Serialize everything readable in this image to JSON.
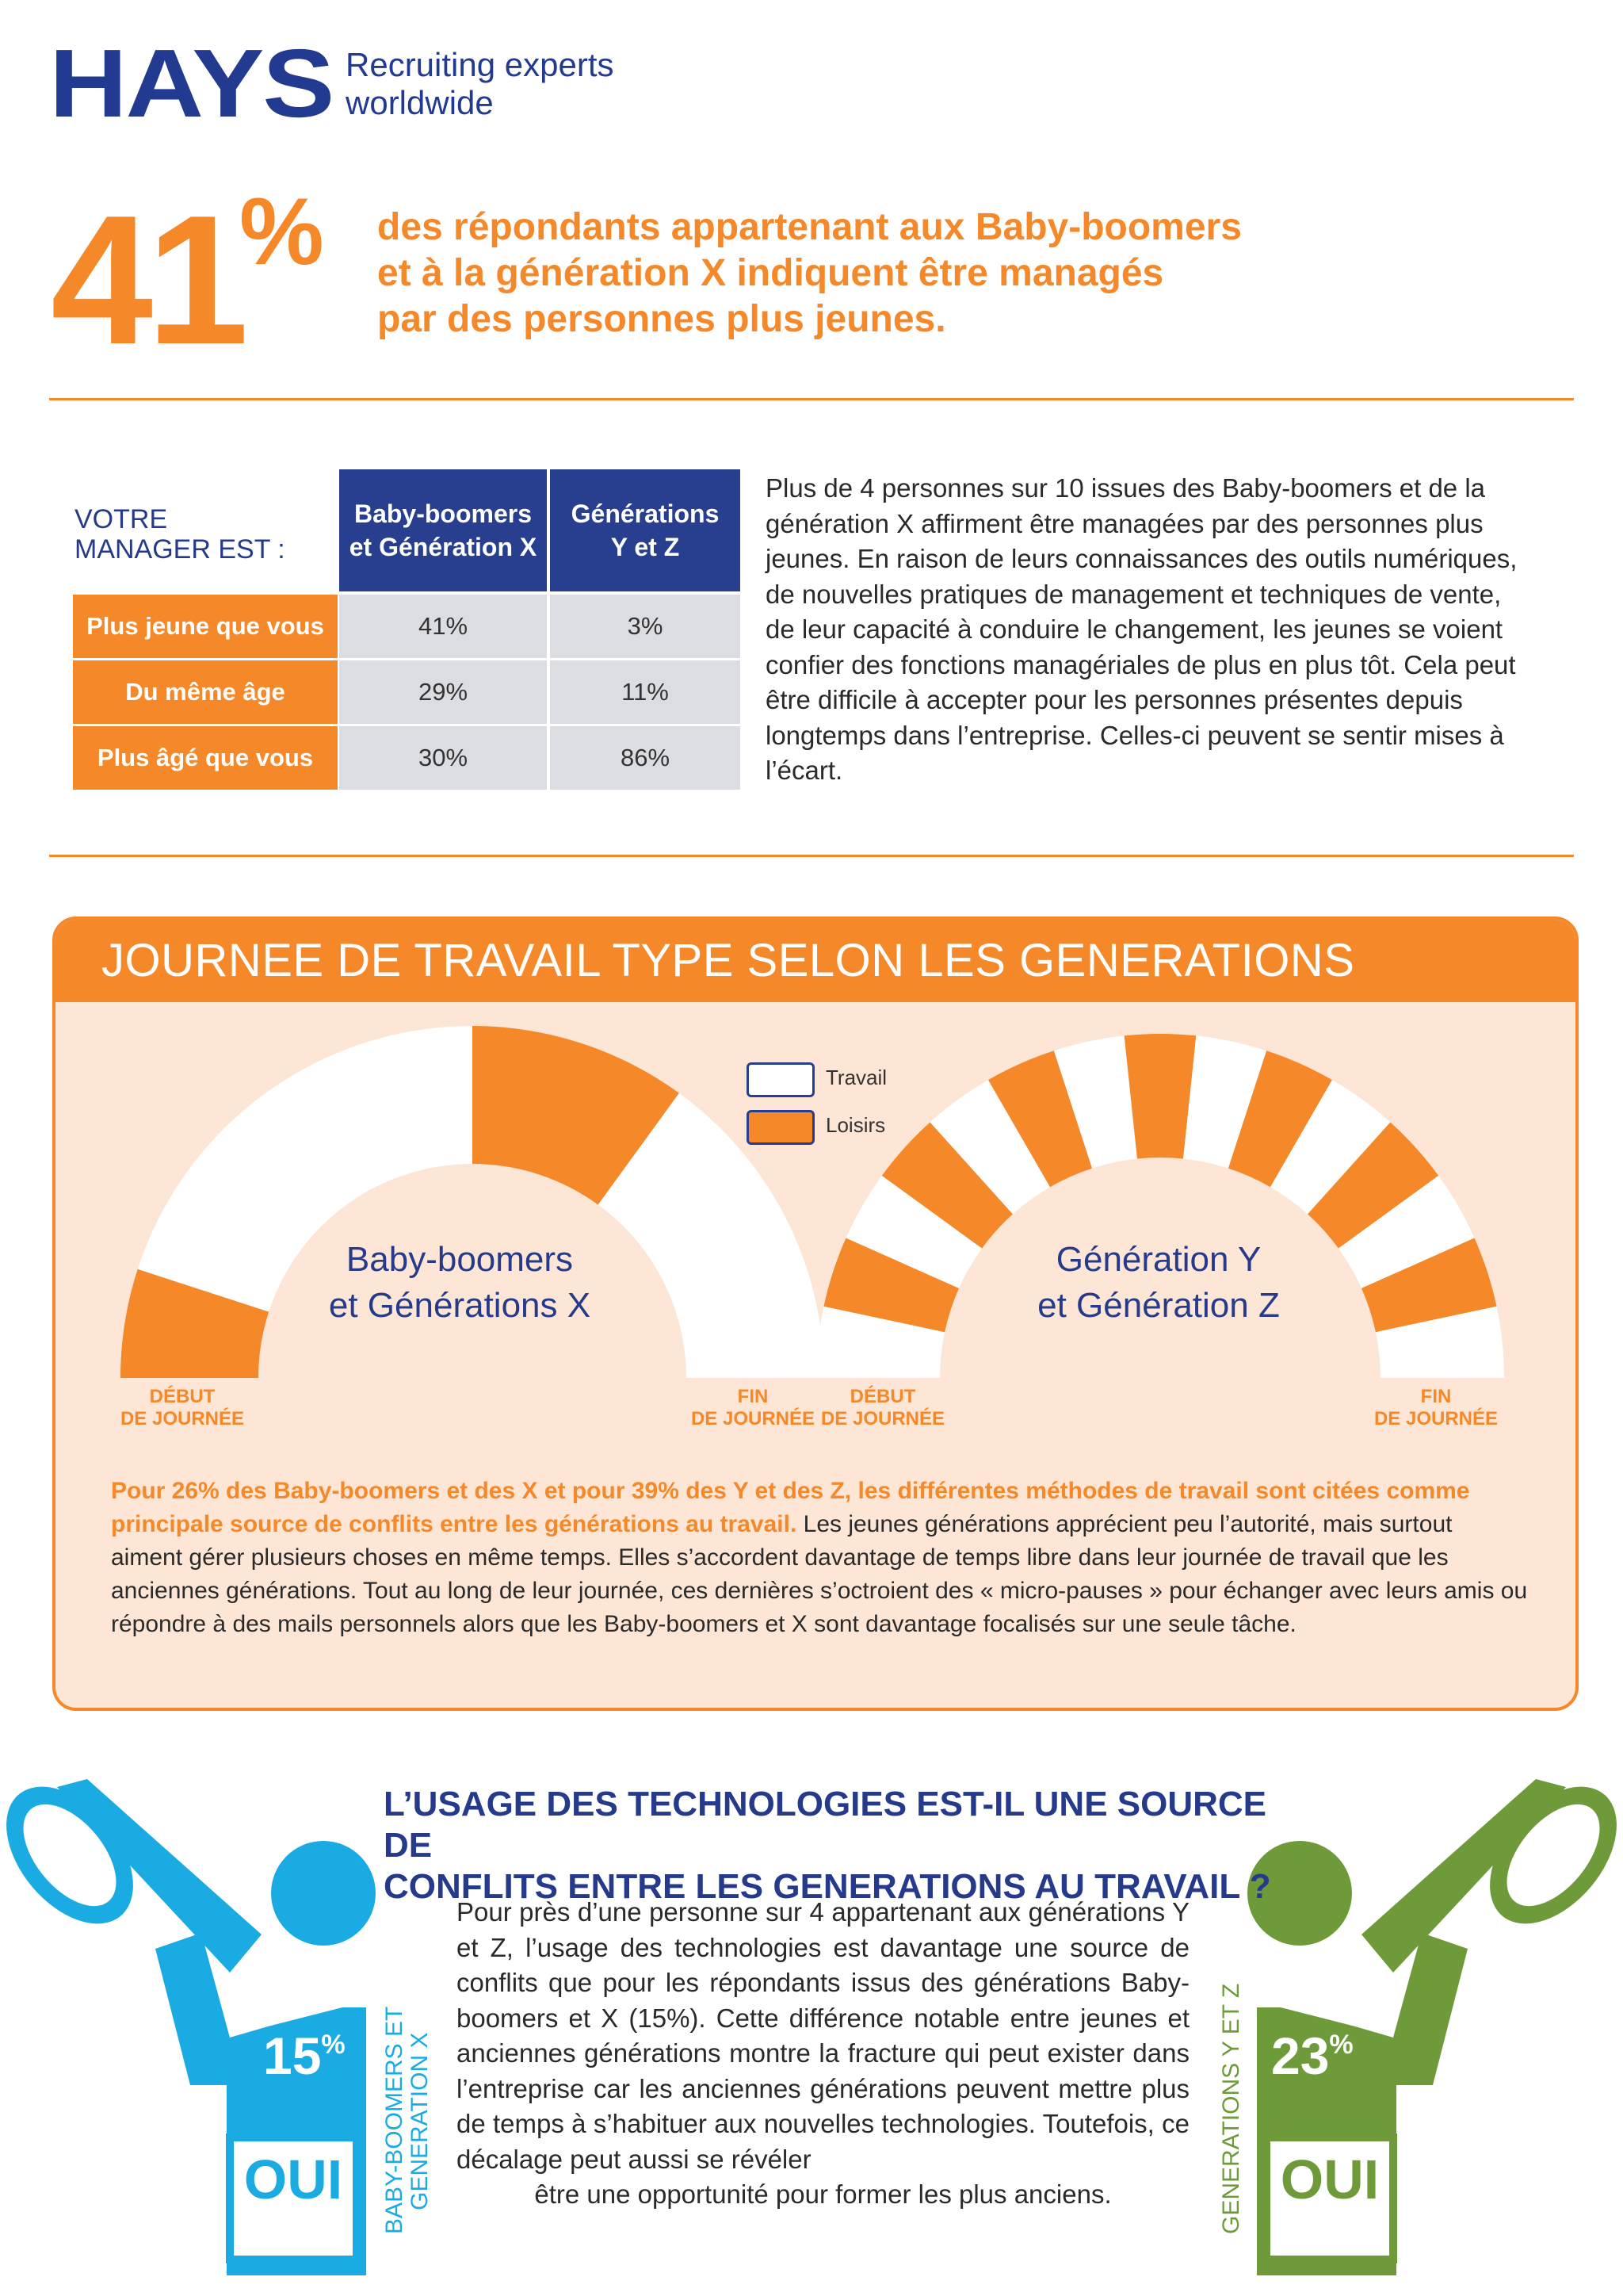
{
  "header": {
    "logo": "HAYS",
    "tagline_line1": "Recruiting experts",
    "tagline_line2": "worldwide"
  },
  "stat": {
    "number": "41",
    "percent": "%",
    "headline": [
      "des répondants appartenant aux Baby-boomers",
      "et à la génération X indiquent être managés",
      "par des personnes plus jeunes."
    ]
  },
  "manager_table": {
    "label_line1": "VOTRE",
    "label_line2": "MANAGER EST :",
    "columns": [
      {
        "line1": "Baby-boomers",
        "line2": "et Génération X"
      },
      {
        "line1": "Générations",
        "line2": "Y et Z"
      }
    ],
    "rows": [
      {
        "label": "Plus jeune que vous",
        "values": [
          "41%",
          "3%"
        ]
      },
      {
        "label": "Du même âge",
        "values": [
          "29%",
          "11%"
        ]
      },
      {
        "label": "Plus âgé que vous",
        "values": [
          "30%",
          "86%"
        ]
      }
    ]
  },
  "intro_text": "Plus de 4 personnes sur 10 issues des Baby-boomers et de la génération X affirment être managées par des personnes plus jeunes. En raison de leurs connaissances des outils numériques, de nouvelles pratiques de management et techniques de vente, de leur capacité à conduire le changement, les jeunes se voient confier des fonctions managériales de plus en plus tôt. Cela peut être difficile à accepter pour les personnes présentes depuis longtemps dans l’entreprise. Celles-ci peuvent se sentir mises à l’écart.",
  "workday": {
    "title": "JOURNEE DE TRAVAIL TYPE  SELON LES GENERATIONS",
    "legend": {
      "work": "Travail",
      "leisure": "Loisirs"
    },
    "colors": {
      "work": "#ffffff",
      "leisure": "#f5892a"
    },
    "gauges": [
      {
        "label_line1": "Baby-boomers",
        "label_line2": "et Générations X",
        "segments": [
          "leisure",
          "work",
          "leisure",
          "work"
        ],
        "weights": [
          1,
          4,
          2,
          3
        ]
      },
      {
        "label_line1": "Génération Y",
        "label_line2": "et Génération Z",
        "segments": [
          "work",
          "leisure",
          "work",
          "leisure",
          "work",
          "leisure",
          "work",
          "leisure",
          "work",
          "leisure",
          "work",
          "leisure",
          "work",
          "leisure",
          "work"
        ],
        "weights": [
          1,
          1,
          1,
          1,
          1,
          1,
          1,
          1,
          1,
          1,
          1,
          1,
          1,
          1,
          1
        ]
      }
    ],
    "start_line1": "DÉBUT",
    "start_line2": "DE JOURNÉE",
    "end_line1": "FIN",
    "end_line2": "DE JOURNÉE",
    "text_highlight": "Pour 26% des Baby-boomers et des X et pour 39% des Y et des Z, les différentes méthodes de travail sont citées comme principale source de conflits entre les générations au travail.",
    "text_rest": " Les jeunes générations apprécient peu l’autorité, mais surtout aiment gérer plusieurs choses en même temps. Elles s’accordent davantage de temps libre dans leur journée de travail que les anciennes générations. Tout au long de leur journée, ces dernières s’octroient des « micro-pauses » pour échanger avec leurs amis ou répondre à des mails personnels alors que les Baby-boomers et X sont davantage focalisés sur une seule tâche."
  },
  "tech": {
    "title_line1": "L’USAGE DES TECHNOLOGIES EST-IL UNE SOURCE DE",
    "title_line2": "CONFLITS ENTRE LES GENERATIONS AU TRAVAIL ?",
    "text": "Pour près d’une personne sur 4 appartenant aux générations Y et Z, l’usage des technologies est davantage une source de conflits que pour les répondants issus des générations Baby-boomers et X (15%). Cette différence notable entre jeunes et anciennes générations montre la fracture qui peut exister dans l’entreprise car les anciennes générations peuvent mettre plus de temps à s’habituer aux nouvelles technologies. Toutefois, ce décalage peut aussi se révéler",
    "text_last": "être une opportunité pour former les plus anciens.",
    "left": {
      "value": "15",
      "percent": "%",
      "answer": "OUI",
      "side_line1": "BABY-BOOMERS ET",
      "side_line2": "GENERATION X",
      "color": "#1aabe3"
    },
    "right": {
      "value": "23",
      "percent": "%",
      "answer": "OUI",
      "side_line1": "GENERATIONS Y ET Z",
      "color": "#6f9a3a"
    }
  }
}
